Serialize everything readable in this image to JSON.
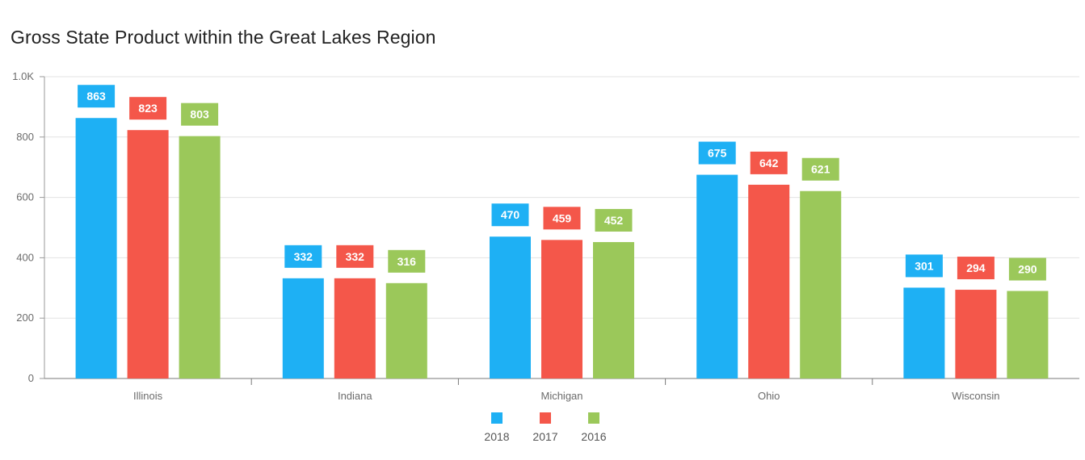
{
  "colors": {
    "2018": "#1eb0f4",
    "2017": "#f4574a",
    "2016": "#9bc85a"
  },
  "chart_data": {
    "type": "bar",
    "title": "Gross State Product within the Great Lakes Region",
    "xlabel": "",
    "ylabel": "",
    "categories": [
      "Illinois",
      "Indiana",
      "Michigan",
      "Ohio",
      "Wisconsin"
    ],
    "series": [
      {
        "name": "2018",
        "color": "#1eb0f4",
        "values": [
          863,
          332,
          470,
          675,
          301
        ]
      },
      {
        "name": "2017",
        "color": "#f4574a",
        "values": [
          823,
          332,
          459,
          642,
          294
        ]
      },
      {
        "name": "2016",
        "color": "#9bc85a",
        "values": [
          803,
          316,
          452,
          621,
          290
        ]
      }
    ],
    "ylim": [
      0,
      1000
    ],
    "yticks": [
      0,
      200,
      400,
      600,
      800,
      1000
    ],
    "ytick_labels": [
      "0",
      "200",
      "400",
      "600",
      "800",
      "1.0K"
    ],
    "grid": true,
    "legend": "bottom-center",
    "data_labels": true
  }
}
